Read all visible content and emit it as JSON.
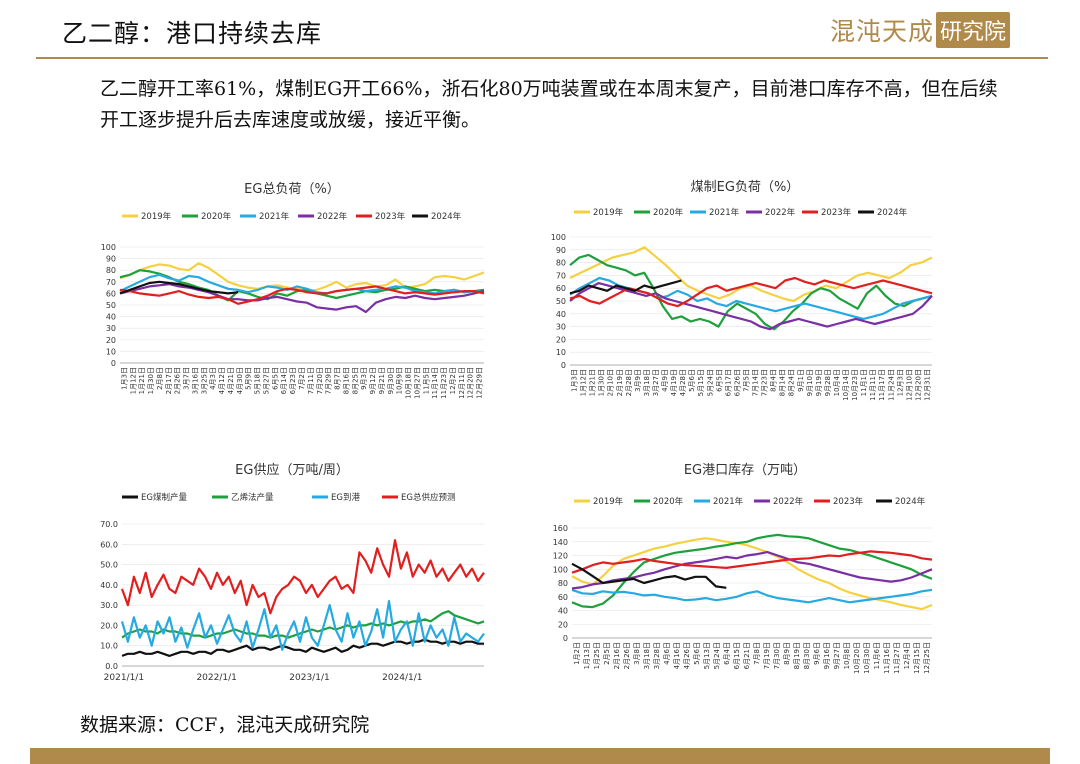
{
  "header": {
    "title": "乙二醇：港口持续去库",
    "logo_text": "混沌天成",
    "logo_seal": "研究院"
  },
  "summary": "乙二醇开工率61%，煤制EG开工66%，浙石化80万吨装置或在本周末复产，目前港口库存不高，但在后续开工逐步提升后去库速度或放缓，接近平衡。",
  "source": "数据来源：CCF，混沌天成研究院",
  "colors": {
    "accent": "#b08a4a"
  },
  "chart_data": [
    {
      "id": "eg-load",
      "type": "line",
      "title": "EG总负荷（%）",
      "ylim": [
        0,
        100
      ],
      "yticks": [
        0,
        10,
        20,
        30,
        40,
        50,
        60,
        70,
        80,
        90,
        100
      ],
      "x_labels": [
        "1月3日",
        "1月12日",
        "1月21日",
        "1月30日",
        "2月8日",
        "2月17日",
        "2月26日",
        "3月7日",
        "3月16日",
        "3月25日",
        "4月3日",
        "4月12日",
        "4月21日",
        "4月30日",
        "5月9日",
        "5月18日",
        "5月27日",
        "6月5日",
        "6月14日",
        "6月23日",
        "7月2日",
        "7月11日",
        "7月20日",
        "7月29日",
        "8月7日",
        "8月16日",
        "8月25日",
        "9月3日",
        "9月12日",
        "9月21日",
        "9月30日",
        "10月9日",
        "10月18日",
        "10月27日",
        "11月5日",
        "11月14日",
        "11月23日",
        "12月2日",
        "12月11日",
        "12月20日",
        "12月29日"
      ],
      "series": [
        {
          "name": "2019年",
          "color": "#f5d142",
          "values": [
            73,
            76,
            80,
            83,
            85,
            84,
            81,
            80,
            86,
            82,
            76,
            70,
            67,
            65,
            64,
            66,
            67,
            65,
            64,
            62,
            63,
            66,
            70,
            65,
            68,
            69,
            66,
            67,
            72,
            65,
            66,
            68,
            74,
            75,
            74,
            72,
            75,
            78
          ]
        },
        {
          "name": "2020年",
          "color": "#1ea03c",
          "values": [
            74,
            76,
            80,
            79,
            77,
            74,
            70,
            68,
            65,
            63,
            58,
            54,
            62,
            60,
            57,
            55,
            60,
            58,
            62,
            63,
            60,
            58,
            56,
            58,
            60,
            62,
            61,
            63,
            64,
            66,
            64,
            62,
            63,
            62,
            63,
            61,
            62,
            63
          ]
        },
        {
          "name": "2021年",
          "color": "#27a9e1",
          "values": [
            62,
            66,
            70,
            74,
            76,
            73,
            71,
            75,
            74,
            70,
            67,
            64,
            63,
            61,
            63,
            66,
            65,
            63,
            66,
            64,
            61,
            60,
            62,
            63,
            64,
            62,
            63,
            64,
            66,
            65,
            62,
            61,
            60,
            62,
            63,
            61,
            62,
            61
          ]
        },
        {
          "name": "2022年",
          "color": "#7a2fa3",
          "values": [
            60,
            62,
            64,
            66,
            67,
            68,
            66,
            65,
            63,
            61,
            58,
            55,
            55,
            54,
            54,
            56,
            57,
            55,
            53,
            52,
            48,
            47,
            46,
            48,
            49,
            44,
            52,
            55,
            57,
            56,
            58,
            56,
            55,
            56,
            57,
            58,
            60,
            62
          ]
        },
        {
          "name": "2023年",
          "color": "#e21f1f",
          "values": [
            63,
            62,
            60,
            59,
            58,
            60,
            62,
            59,
            57,
            56,
            57,
            55,
            51,
            53,
            55,
            58,
            62,
            64,
            63,
            61,
            60,
            60,
            62,
            63,
            64,
            65,
            66,
            64,
            62,
            60,
            61,
            60,
            59,
            60,
            61,
            62,
            62,
            60
          ]
        },
        {
          "name": "2024年",
          "color": "#111111",
          "values": [
            60,
            63,
            66,
            69,
            70,
            69,
            68,
            66,
            64,
            62,
            61,
            60,
            61
          ]
        }
      ]
    },
    {
      "id": "coal-eg-load",
      "type": "line",
      "title": "煤制EG负荷（%）",
      "ylim": [
        0,
        100
      ],
      "yticks": [
        0,
        10,
        20,
        30,
        40,
        50,
        60,
        70,
        80,
        90,
        100
      ],
      "x_labels": [
        "1月3日",
        "1月12日",
        "1月21日",
        "1月30日",
        "2月10日",
        "2月19日",
        "2月28日",
        "3月9日",
        "3月18日",
        "3月27日",
        "4月9日",
        "4月19日",
        "4月28日",
        "5月6日",
        "5月15日",
        "5月24日",
        "6月5日",
        "6月17日",
        "6月26日",
        "7月5日",
        "7月14日",
        "7月23日",
        "8月4日",
        "8月14日",
        "8月24日",
        "9月1日",
        "9月10日",
        "9月19日",
        "9月28日",
        "10月4日",
        "10月14日",
        "10月23日",
        "11月1日",
        "11月11日",
        "11月17日",
        "11月24日",
        "12月3日",
        "12月10日",
        "12月20日",
        "12月31日"
      ],
      "series": [
        {
          "name": "2019年",
          "color": "#f5d142",
          "values": [
            68,
            72,
            76,
            80,
            84,
            86,
            88,
            92,
            85,
            78,
            70,
            62,
            58,
            55,
            52,
            55,
            60,
            62,
            58,
            55,
            52,
            50,
            55,
            58,
            62,
            60,
            65,
            70,
            72,
            70,
            68,
            72,
            78,
            80,
            84
          ]
        },
        {
          "name": "2020年",
          "color": "#1ea03c",
          "values": [
            78,
            84,
            86,
            82,
            78,
            76,
            74,
            70,
            72,
            60,
            46,
            36,
            38,
            34,
            36,
            34,
            30,
            42,
            48,
            44,
            40,
            32,
            28,
            34,
            42,
            48,
            56,
            60,
            58,
            52,
            48,
            44,
            56,
            62,
            54,
            48,
            46,
            50,
            52,
            54
          ]
        },
        {
          "name": "2021年",
          "color": "#27a9e1",
          "values": [
            55,
            60,
            64,
            68,
            66,
            62,
            60,
            58,
            56,
            52,
            54,
            58,
            55,
            50,
            52,
            48,
            46,
            50,
            48,
            46,
            44,
            42,
            44,
            46,
            48,
            46,
            44,
            42,
            40,
            38,
            36,
            38,
            40,
            44,
            48,
            50,
            52,
            54
          ]
        },
        {
          "name": "2022年",
          "color": "#7a2fa3",
          "values": [
            50,
            56,
            60,
            64,
            62,
            60,
            58,
            56,
            54,
            56,
            52,
            50,
            48,
            46,
            44,
            42,
            40,
            38,
            36,
            34,
            30,
            28,
            32,
            34,
            36,
            34,
            32,
            30,
            32,
            34,
            36,
            34,
            32,
            34,
            36,
            38,
            40,
            46,
            54
          ]
        },
        {
          "name": "2023年",
          "color": "#e21f1f",
          "values": [
            52,
            54,
            50,
            48,
            52,
            56,
            60,
            58,
            56,
            52,
            48,
            46,
            50,
            55,
            60,
            62,
            58,
            60,
            62,
            64,
            62,
            60,
            66,
            68,
            65,
            63,
            66,
            64,
            62,
            60,
            62,
            64,
            66,
            64,
            62,
            60,
            58,
            56
          ]
        },
        {
          "name": "2024年",
          "color": "#111111",
          "values": [
            56,
            58,
            62,
            60,
            58,
            62,
            60,
            58,
            62,
            60,
            62,
            64,
            66
          ]
        }
      ]
    },
    {
      "id": "eg-supply",
      "type": "line",
      "title": "EG供应（万吨/周）",
      "ylim": [
        0,
        70
      ],
      "yticks": [
        "0.0",
        "10.0",
        "20.0",
        "30.0",
        "40.0",
        "50.0",
        "60.0",
        "70.0"
      ],
      "x_tick_labels": [
        "2021/1/1",
        "2022/1/1",
        "2023/1/1",
        "2024/1/1"
      ],
      "series": [
        {
          "name": "EG煤制产量",
          "color": "#111111",
          "values": [
            5,
            6,
            6,
            7,
            6,
            6,
            7,
            6,
            5,
            6,
            7,
            7,
            6,
            7,
            7,
            6,
            8,
            8,
            7,
            8,
            9,
            10,
            8,
            9,
            9,
            8,
            9,
            10,
            9,
            8,
            8,
            7,
            9,
            8,
            7,
            8,
            9,
            7,
            8,
            10,
            9,
            10,
            11,
            11,
            10,
            11,
            12,
            12,
            11,
            12,
            12,
            13,
            12,
            12,
            11,
            12,
            12,
            11,
            12,
            12,
            11,
            11
          ]
        },
        {
          "name": "乙烯法产量",
          "color": "#1ea03c",
          "values": [
            14,
            16,
            17,
            18,
            17,
            17,
            16,
            18,
            17,
            17,
            16,
            16,
            15,
            15,
            14,
            15,
            16,
            16,
            17,
            18,
            17,
            16,
            16,
            15,
            15,
            14,
            15,
            15,
            14,
            15,
            16,
            17,
            18,
            17,
            18,
            19,
            18,
            19,
            20,
            19,
            20,
            20,
            21,
            20,
            21,
            20,
            21,
            22,
            21,
            22,
            22,
            23,
            22,
            24,
            26,
            27,
            25,
            24,
            23,
            22,
            21,
            22
          ]
        },
        {
          "name": "EG到港",
          "color": "#27a9e1",
          "values": [
            22,
            12,
            24,
            14,
            20,
            10,
            22,
            16,
            24,
            12,
            19,
            9,
            18,
            26,
            14,
            20,
            11,
            18,
            25,
            16,
            12,
            22,
            9,
            18,
            28,
            14,
            20,
            8,
            16,
            22,
            12,
            24,
            14,
            10,
            20,
            30,
            18,
            12,
            26,
            14,
            22,
            10,
            17,
            28,
            14,
            32,
            12,
            18,
            22,
            10,
            26,
            12,
            20,
            14,
            18,
            10,
            24,
            12,
            16,
            14,
            12,
            16
          ]
        },
        {
          "name": "EG总供应预测",
          "color": "#e21f1f",
          "values": [
            38,
            30,
            44,
            36,
            46,
            34,
            40,
            45,
            38,
            36,
            44,
            42,
            40,
            48,
            44,
            38,
            46,
            40,
            44,
            36,
            42,
            30,
            40,
            34,
            36,
            26,
            34,
            38,
            40,
            44,
            42,
            36,
            40,
            34,
            38,
            42,
            44,
            38,
            40,
            36,
            56,
            52,
            46,
            58,
            50,
            44,
            62,
            48,
            56,
            44,
            50,
            46,
            52,
            44,
            48,
            42,
            46,
            50,
            44,
            48,
            42,
            46
          ]
        }
      ]
    },
    {
      "id": "eg-port-inventory",
      "type": "line",
      "title": "EG港口库存（万吨）",
      "ylim": [
        0,
        160
      ],
      "yticks": [
        0,
        20,
        40,
        60,
        80,
        100,
        120,
        140,
        160
      ],
      "x_labels": [
        "1月2日",
        "1月13日",
        "1月25日",
        "2月5日",
        "2月16日",
        "2月26日",
        "3月8日",
        "3月18日",
        "3月28日",
        "4月6日",
        "4月16日",
        "4月26日",
        "5月6日",
        "5月13日",
        "5月24日",
        "6月4日",
        "6月15日",
        "6月21日",
        "7月8日",
        "7月19日",
        "7月30日",
        "8月9日",
        "8月19日",
        "8月30日",
        "9月6日",
        "9月16日",
        "9月27日",
        "10月8日",
        "10月20日",
        "10月30日",
        "11月6日",
        "11月16日",
        "11月27日",
        "12月4日",
        "12月15日",
        "12月25日"
      ],
      "series": [
        {
          "name": "2019年",
          "color": "#f5d142",
          "values": [
            90,
            82,
            78,
            90,
            105,
            115,
            120,
            125,
            130,
            133,
            137,
            140,
            143,
            145,
            143,
            140,
            138,
            135,
            130,
            125,
            118,
            110,
            100,
            92,
            85,
            80,
            72,
            66,
            62,
            58,
            55,
            52,
            48,
            45,
            42,
            48
          ]
        },
        {
          "name": "2020年",
          "color": "#1ea03c",
          "values": [
            52,
            46,
            45,
            50,
            62,
            80,
            96,
            110,
            115,
            120,
            124,
            126,
            128,
            130,
            133,
            135,
            138,
            140,
            145,
            148,
            150,
            148,
            147,
            145,
            140,
            135,
            130,
            128,
            124,
            120,
            115,
            110,
            105,
            100,
            92,
            86
          ]
        },
        {
          "name": "2021年",
          "color": "#27a9e1",
          "values": [
            70,
            65,
            64,
            68,
            66,
            67,
            65,
            62,
            63,
            60,
            58,
            55,
            56,
            58,
            55,
            57,
            60,
            65,
            68,
            62,
            58,
            56,
            54,
            52,
            55,
            58,
            55,
            52,
            54,
            56,
            58,
            60,
            62,
            64,
            68,
            70
          ]
        },
        {
          "name": "2022年",
          "color": "#7a2fa3",
          "values": [
            72,
            74,
            78,
            80,
            84,
            86,
            88,
            92,
            95,
            100,
            104,
            108,
            110,
            112,
            115,
            118,
            116,
            120,
            122,
            125,
            120,
            115,
            110,
            108,
            104,
            100,
            96,
            92,
            88,
            86,
            84,
            82,
            84,
            88,
            94,
            100
          ]
        },
        {
          "name": "2023年",
          "color": "#e21f1f",
          "values": [
            95,
            100,
            106,
            110,
            108,
            110,
            112,
            115,
            112,
            110,
            108,
            106,
            105,
            104,
            103,
            102,
            104,
            106,
            108,
            110,
            112,
            114,
            115,
            116,
            118,
            120,
            119,
            122,
            124,
            126,
            125,
            124,
            122,
            120,
            116,
            114
          ]
        },
        {
          "name": "2024年",
          "color": "#111111",
          "values": [
            108,
            100,
            90,
            80,
            82,
            84,
            86,
            80,
            84,
            88,
            90,
            85,
            89,
            89,
            75,
            73
          ]
        }
      ]
    }
  ]
}
